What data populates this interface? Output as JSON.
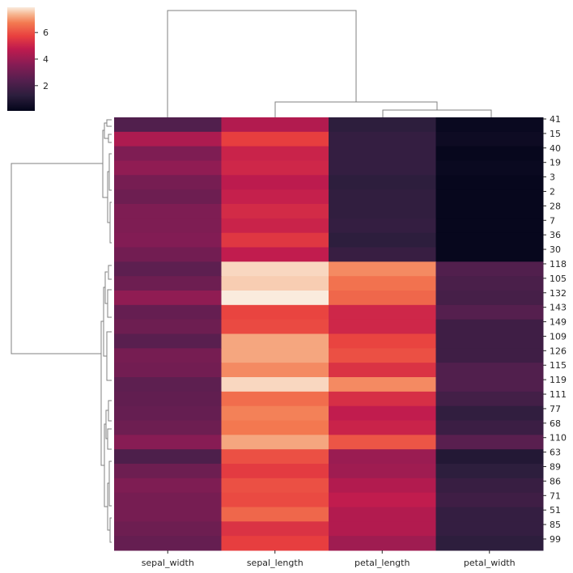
{
  "chart_data": {
    "type": "heatmap",
    "title": "",
    "columns": [
      "sepal_width",
      "sepal_length",
      "petal_length",
      "petal_width"
    ],
    "row_tick_labels": [
      "41",
      "15",
      "40",
      "19",
      "3",
      "2",
      "28",
      "7",
      "36",
      "30",
      "118",
      "105",
      "132",
      "143",
      "149",
      "109",
      "126",
      "115",
      "119",
      "111",
      "77",
      "68",
      "110",
      "63",
      "89",
      "86",
      "71",
      "51",
      "85",
      "99"
    ],
    "colorbar": {
      "ticks": [
        2,
        4,
        6
      ],
      "range": [
        0.1,
        7.9
      ],
      "colormap": "rocket"
    },
    "rows": [
      [
        2.3,
        4.5,
        1.3,
        0.3
      ],
      [
        4.4,
        5.7,
        1.5,
        0.4
      ],
      [
        3.4,
        5.0,
        1.5,
        0.2
      ],
      [
        3.8,
        5.1,
        1.5,
        0.3
      ],
      [
        3.2,
        4.7,
        1.3,
        0.2
      ],
      [
        3.0,
        4.9,
        1.4,
        0.2
      ],
      [
        3.4,
        5.2,
        1.4,
        0.2
      ],
      [
        3.4,
        5.0,
        1.5,
        0.2
      ],
      [
        3.5,
        5.5,
        1.3,
        0.2
      ],
      [
        3.1,
        4.8,
        1.6,
        0.2
      ],
      [
        2.6,
        7.7,
        6.9,
        2.3
      ],
      [
        3.0,
        7.6,
        6.6,
        2.1
      ],
      [
        3.8,
        7.9,
        6.4,
        2.0
      ],
      [
        2.8,
        5.8,
        5.1,
        2.4
      ],
      [
        3.0,
        5.9,
        5.1,
        1.8
      ],
      [
        2.5,
        7.2,
        5.8,
        1.8
      ],
      [
        3.2,
        7.2,
        6.0,
        1.8
      ],
      [
        3.1,
        6.9,
        5.4,
        2.3
      ],
      [
        2.6,
        7.7,
        6.9,
        2.3
      ],
      [
        2.7,
        6.5,
        5.3,
        1.9
      ],
      [
        2.8,
        6.8,
        4.8,
        1.4
      ],
      [
        3.0,
        6.7,
        5.0,
        1.7
      ],
      [
        3.6,
        7.2,
        6.1,
        2.5
      ],
      [
        2.2,
        6.0,
        4.0,
        1.0
      ],
      [
        3.0,
        5.6,
        4.1,
        1.3
      ],
      [
        3.4,
        6.0,
        4.5,
        1.6
      ],
      [
        3.2,
        5.9,
        4.8,
        1.8
      ],
      [
        3.2,
        6.4,
        4.5,
        1.5
      ],
      [
        3.0,
        5.4,
        4.5,
        1.5
      ],
      [
        2.8,
        5.7,
        4.1,
        1.3
      ]
    ]
  }
}
